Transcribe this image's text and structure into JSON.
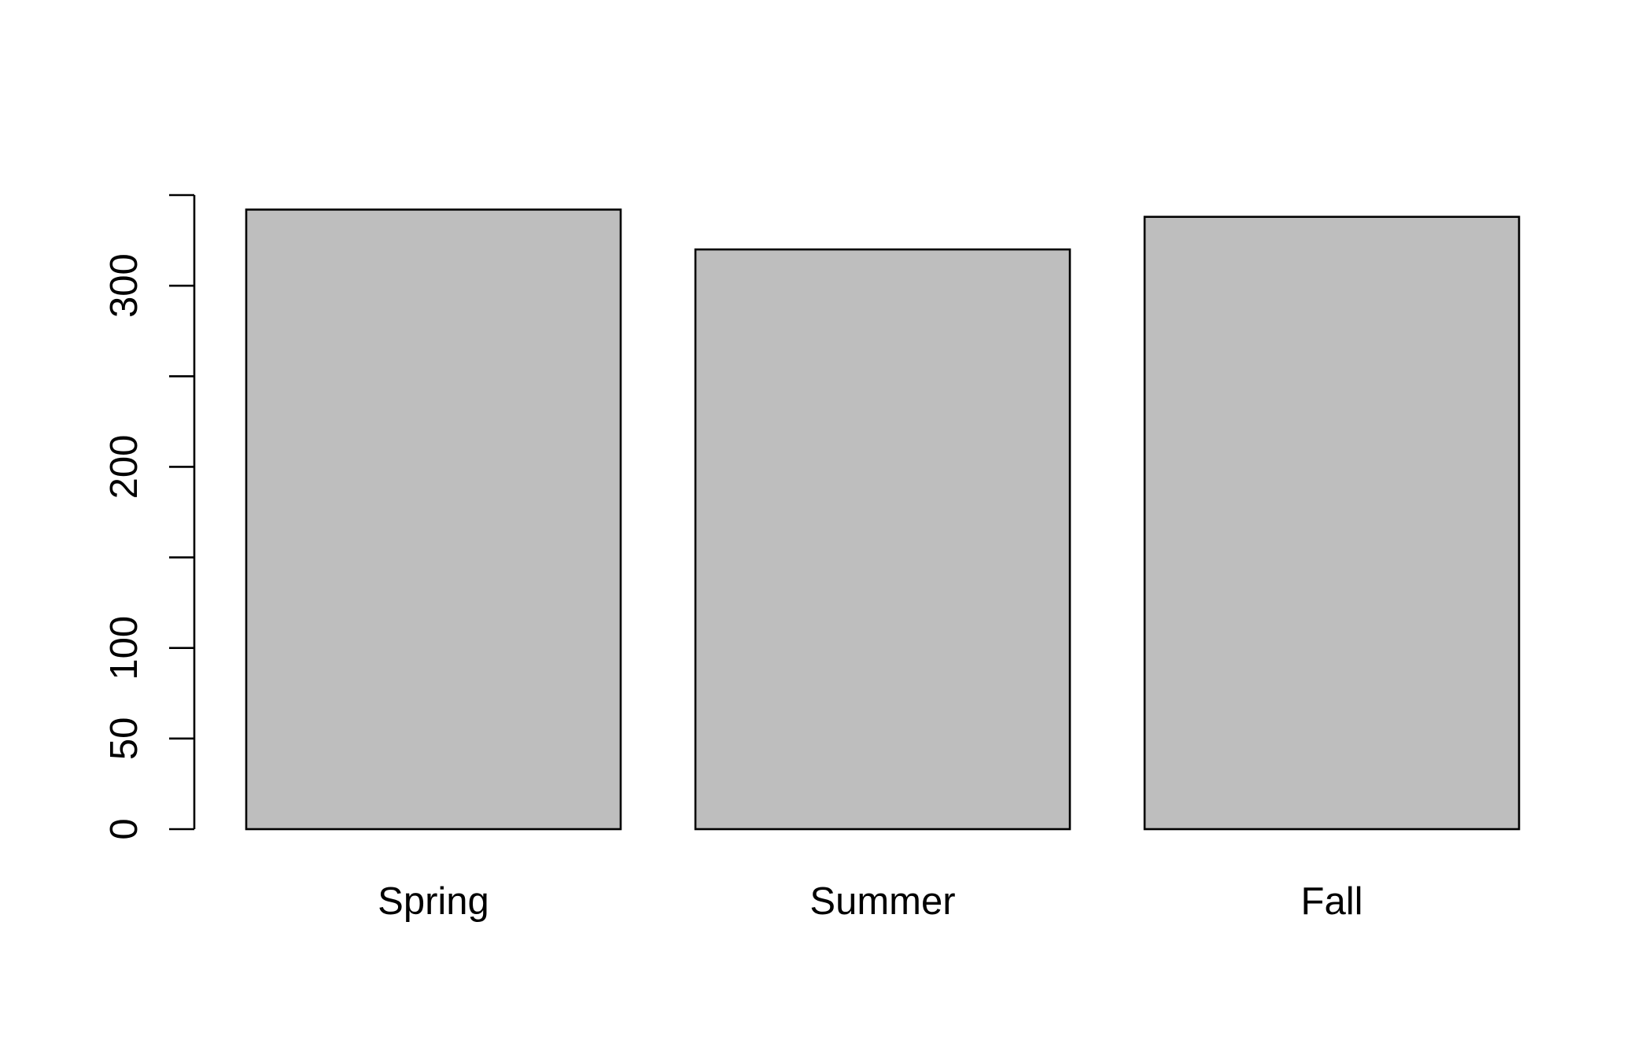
{
  "chart_data": {
    "type": "bar",
    "title": "",
    "xlabel": "",
    "ylabel": "",
    "categories": [
      "Spring",
      "Summer",
      "Fall"
    ],
    "values": [
      342,
      320,
      338
    ],
    "ylim": [
      0,
      350
    ],
    "y_ticks": [
      0,
      50,
      100,
      150,
      200,
      250,
      300,
      350
    ],
    "y_tick_labels": [
      "0",
      "50",
      "100",
      "",
      "200",
      "",
      "300",
      ""
    ],
    "bar_color": "#bebebe",
    "grid": false,
    "legend": "none"
  }
}
